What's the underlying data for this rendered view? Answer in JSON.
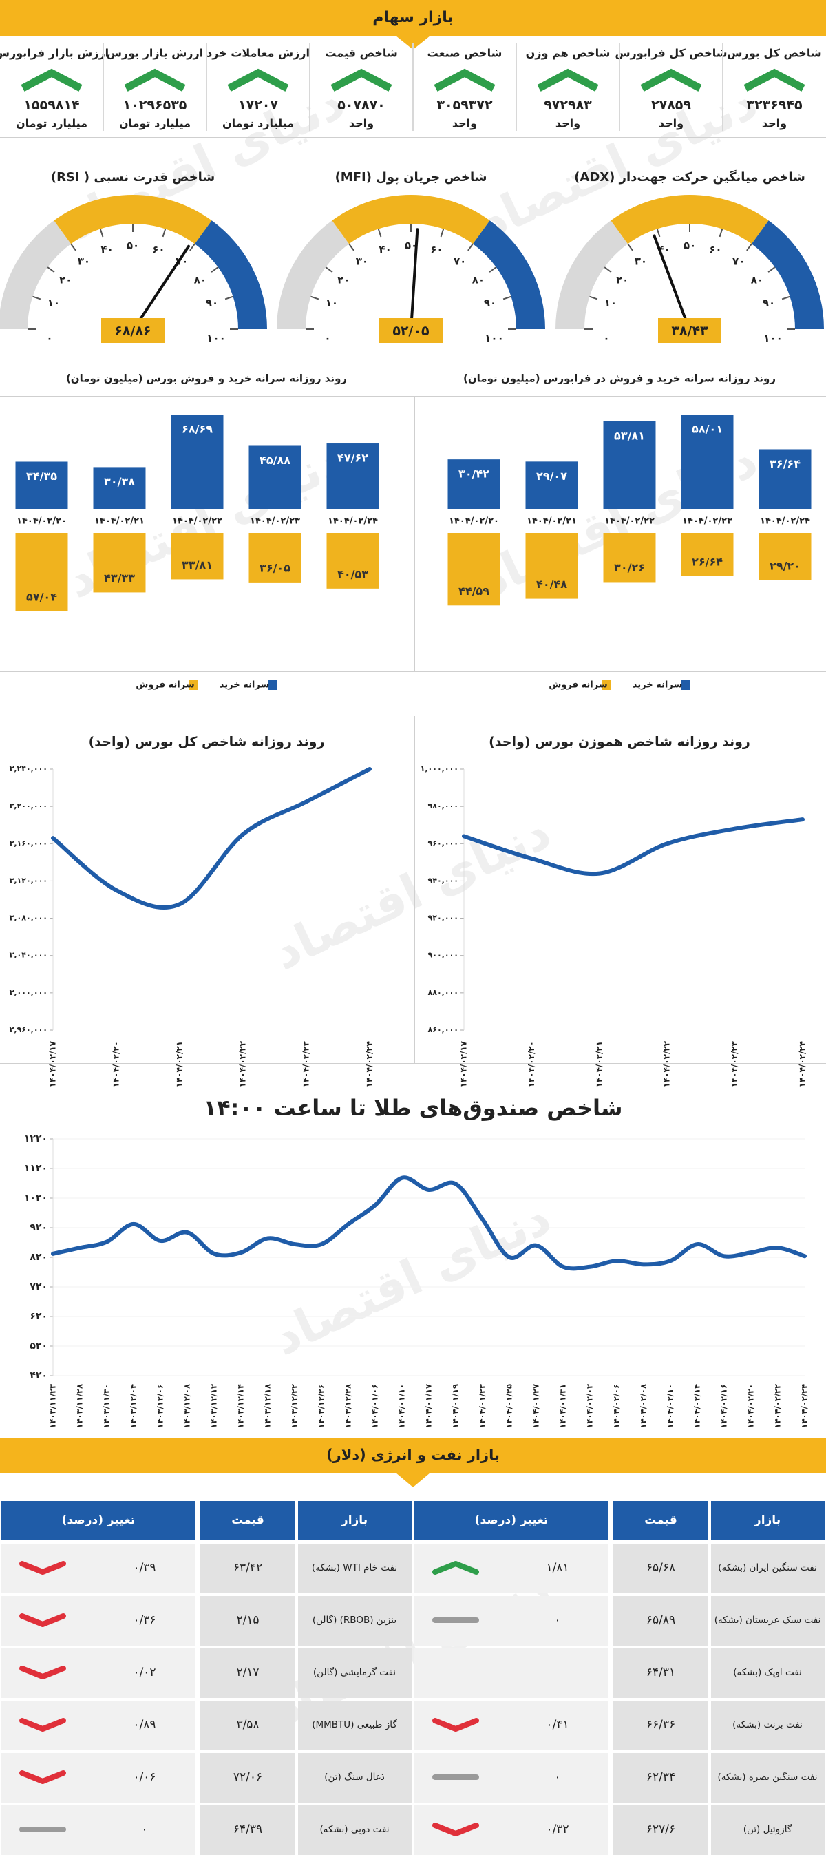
{
  "header": {
    "title": "بازار سهام"
  },
  "watermark": "دنیای اقتصاد",
  "indicator_color": "#2e9e4a",
  "indicators": [
    {
      "title": "شاخص کل بورس",
      "value": "۳۲۳۶۹۴۵",
      "unit": "واحد"
    },
    {
      "title": "شاخص کل فرابورس",
      "value": "۲۷۸۵۹",
      "unit": "واحد"
    },
    {
      "title": "شاخص هم وزن",
      "value": "۹۷۲۹۸۳",
      "unit": "واحد"
    },
    {
      "title": "شاخص صنعت",
      "value": "۳۰۵۹۳۷۲",
      "unit": "واحد"
    },
    {
      "title": "شاخص قیمت",
      "value": "۵۰۷۸۷۰",
      "unit": "واحد"
    },
    {
      "title": "ارزش معاملات خرد",
      "value": "۱۷۲۰۷",
      "unit": "میلیارد تومان"
    },
    {
      "title": "ارزش بازار بورس",
      "value": "۱۰۲۹۶۵۳۵",
      "unit": "میلیارد تومان"
    },
    {
      "title": "ارزش بازار فرابورس",
      "value": "۱۵۵۹۸۱۴",
      "unit": "میلیارد تومان"
    }
  ],
  "chart_data": [
    {
      "type": "gauge",
      "title": "شاخص میانگین حرکت جهت‌دار (ADX)",
      "value": 38.43,
      "value_label": "۳۸/۴۳",
      "ylim": [
        0,
        100
      ],
      "yticks": [
        {
          "value": 0,
          "label": "۰"
        },
        {
          "value": 10,
          "label": "۱۰"
        },
        {
          "value": 20,
          "label": "۲۰"
        },
        {
          "value": 30,
          "label": "۳۰"
        },
        {
          "value": 40,
          "label": "۴۰"
        },
        {
          "value": 50,
          "label": "۵۰"
        },
        {
          "value": 60,
          "label": "۶۰"
        },
        {
          "value": 70,
          "label": "۷۰"
        },
        {
          "value": 80,
          "label": "۸۰"
        },
        {
          "value": 90,
          "label": "۹۰"
        },
        {
          "value": 100,
          "label": "۱۰۰"
        }
      ],
      "bands": [
        {
          "from": 0,
          "to": 30,
          "color": "#d9d9d9"
        },
        {
          "from": 30,
          "to": 70,
          "color": "#f0b31e"
        },
        {
          "from": 70,
          "to": 100,
          "color": "#1f5ca8"
        }
      ]
    },
    {
      "type": "gauge",
      "title": "شاخص جریان پول (MFI)",
      "value": 52.05,
      "value_label": "۵۲/۰۵",
      "ylim": [
        0,
        100
      ],
      "yticks": [
        {
          "value": 0,
          "label": "۰"
        },
        {
          "value": 10,
          "label": "۱۰"
        },
        {
          "value": 20,
          "label": "۲۰"
        },
        {
          "value": 30,
          "label": "۳۰"
        },
        {
          "value": 40,
          "label": "۴۰"
        },
        {
          "value": 50,
          "label": "۵۰"
        },
        {
          "value": 60,
          "label": "۶۰"
        },
        {
          "value": 70,
          "label": "۷۰"
        },
        {
          "value": 80,
          "label": "۸۰"
        },
        {
          "value": 90,
          "label": "۹۰"
        },
        {
          "value": 100,
          "label": "۱۰۰"
        }
      ],
      "bands": [
        {
          "from": 0,
          "to": 30,
          "color": "#d9d9d9"
        },
        {
          "from": 30,
          "to": 70,
          "color": "#f0b31e"
        },
        {
          "from": 70,
          "to": 100,
          "color": "#1f5ca8"
        }
      ]
    },
    {
      "type": "gauge",
      "title": "شاخص قدرت نسبی ( RSI)",
      "value": 68.86,
      "value_label": "۶۸/۸۶",
      "ylim": [
        0,
        100
      ],
      "yticks": [
        {
          "value": 0,
          "label": "۰"
        },
        {
          "value": 10,
          "label": "۱۰"
        },
        {
          "value": 20,
          "label": "۲۰"
        },
        {
          "value": 30,
          "label": "۳۰"
        },
        {
          "value": 40,
          "label": "۴۰"
        },
        {
          "value": 50,
          "label": "۵۰"
        },
        {
          "value": 60,
          "label": "۶۰"
        },
        {
          "value": 70,
          "label": "۷۰"
        },
        {
          "value": 80,
          "label": "۸۰"
        },
        {
          "value": 90,
          "label": "۹۰"
        },
        {
          "value": 100,
          "label": "۱۰۰"
        }
      ],
      "bands": [
        {
          "from": 0,
          "to": 30,
          "color": "#d9d9d9"
        },
        {
          "from": 30,
          "to": 70,
          "color": "#f0b31e"
        },
        {
          "from": 70,
          "to": 100,
          "color": "#1f5ca8"
        }
      ]
    },
    {
      "type": "bar",
      "title": "روند روزانه سرانه خرید و فروش بورس (میلیون تومان)",
      "categories": [
        "۱۴۰۴/۰۲/۲۰",
        "۱۴۰۴/۰۲/۲۱",
        "۱۴۰۴/۰۲/۲۲",
        "۱۴۰۴/۰۲/۲۳",
        "۱۴۰۴/۰۲/۲۴"
      ],
      "series": [
        {
          "name": "سرانه خرید",
          "color": "#1f5ca8",
          "direction": "up",
          "values": [
            34.35,
            30.38,
            68.69,
            45.88,
            47.62
          ],
          "value_labels": [
            "۳۴/۳۵",
            "۳۰/۳۸",
            "۶۸/۶۹",
            "۴۵/۸۸",
            "۴۷/۶۲"
          ]
        },
        {
          "name": "سرانه فروش",
          "color": "#f0b31e",
          "direction": "down",
          "values": [
            57.04,
            43.33,
            33.81,
            36.05,
            40.53
          ],
          "value_labels": [
            "۵۷/۰۴",
            "۴۳/۳۳",
            "۳۳/۸۱",
            "۳۶/۰۵",
            "۴۰/۵۳"
          ]
        }
      ]
    },
    {
      "type": "bar",
      "title": "روند روزانه سرانه خرید و فروش در فرابورس (میلیون تومان)",
      "categories": [
        "۱۴۰۴/۰۲/۲۰",
        "۱۴۰۴/۰۲/۲۱",
        "۱۴۰۴/۰۲/۲۲",
        "۱۴۰۴/۰۲/۲۳",
        "۱۴۰۴/۰۲/۲۴"
      ],
      "series": [
        {
          "name": "سرانه خرید",
          "color": "#1f5ca8",
          "direction": "up",
          "values": [
            30.42,
            29.07,
            53.81,
            58.01,
            36.64
          ],
          "value_labels": [
            "۳۰/۴۲",
            "۲۹/۰۷",
            "۵۳/۸۱",
            "۵۸/۰۱",
            "۳۶/۶۴"
          ]
        },
        {
          "name": "سرانه فروش",
          "color": "#f0b31e",
          "direction": "down",
          "values": [
            44.59,
            40.48,
            30.26,
            26.64,
            29.2
          ],
          "value_labels": [
            "۴۴/۵۹",
            "۴۰/۴۸",
            "۳۰/۲۶",
            "۲۶/۶۴",
            "۲۹/۲۰"
          ]
        }
      ]
    },
    {
      "type": "line",
      "title": "روند روزانه شاخص کل بورس (واحد)",
      "categories": [
        "۱۴۰۴/۰۲/۱۷",
        "۱۴۰۴/۰۲/۲۰",
        "۱۴۰۴/۰۲/۲۱",
        "۱۴۰۴/۰۲/۲۲",
        "۱۴۰۴/۰۲/۲۳",
        "۱۴۰۴/۰۲/۲۴"
      ],
      "series": [
        {
          "color": "#1f5ca8",
          "values": [
            3166000,
            3110000,
            3095000,
            3170000,
            3205000,
            3240000
          ]
        }
      ],
      "ylim": [
        2960000,
        3240000
      ],
      "yticks": [
        {
          "value": 2960000,
          "label": "۲,۹۶۰,۰۰۰"
        },
        {
          "value": 3000000,
          "label": "۳,۰۰۰,۰۰۰"
        },
        {
          "value": 3040000,
          "label": "۳,۰۴۰,۰۰۰"
        },
        {
          "value": 3080000,
          "label": "۳,۰۸۰,۰۰۰"
        },
        {
          "value": 3120000,
          "label": "۳,۱۲۰,۰۰۰"
        },
        {
          "value": 3160000,
          "label": "۳,۱۶۰,۰۰۰"
        },
        {
          "value": 3200000,
          "label": "۳,۲۰۰,۰۰۰"
        },
        {
          "value": 3240000,
          "label": "۳,۲۴۰,۰۰۰"
        }
      ]
    },
    {
      "type": "line",
      "title": "روند روزانه شاخص هموزن بورس (واحد)",
      "categories": [
        "۱۴۰۴/۰۲/۱۷",
        "۱۴۰۴/۰۲/۲۰",
        "۱۴۰۴/۰۲/۲۱",
        "۱۴۰۴/۰۲/۲۲",
        "۱۴۰۴/۰۲/۲۳",
        "۱۴۰۴/۰۲/۲۴"
      ],
      "series": [
        {
          "color": "#1f5ca8",
          "values": [
            964000,
            952000,
            944000,
            960000,
            968000,
            973000
          ]
        }
      ],
      "ylim": [
        860000,
        1000000
      ],
      "yticks": [
        {
          "value": 860000,
          "label": "۸۶۰,۰۰۰"
        },
        {
          "value": 880000,
          "label": "۸۸۰,۰۰۰"
        },
        {
          "value": 900000,
          "label": "۹۰۰,۰۰۰"
        },
        {
          "value": 920000,
          "label": "۹۲۰,۰۰۰"
        },
        {
          "value": 940000,
          "label": "۹۴۰,۰۰۰"
        },
        {
          "value": 960000,
          "label": "۹۶۰,۰۰۰"
        },
        {
          "value": 980000,
          "label": "۹۸۰,۰۰۰"
        },
        {
          "value": 1000000,
          "label": "۱,۰۰۰,۰۰۰"
        }
      ]
    },
    {
      "type": "line",
      "title": "شاخص صندوق‌های طلا تا ساعت ۱۴:۰۰",
      "categories": [
        "۱۴۰۳/۱۱/۲۳",
        "۱۴۰۳/۱۱/۲۸",
        "۱۴۰۳/۱۱/۳۰",
        "۱۴۰۳/۱۲/۰۴",
        "۱۴۰۳/۱۲/۰۶",
        "۱۴۰۳/۱۲/۰۸",
        "۱۴۰۳/۱۲/۱۲",
        "۱۴۰۳/۱۲/۱۴",
        "۱۴۰۳/۱۲/۱۸",
        "۱۴۰۳/۱۲/۲۲",
        "۱۴۰۳/۱۲/۲۶",
        "۱۴۰۳/۱۲/۲۸",
        "۱۴۰۴/۰۱/۰۶",
        "۱۴۰۴/۰۱/۱۰",
        "۱۴۰۴/۰۱/۱۷",
        "۱۴۰۴/۰۱/۱۹",
        "۱۴۰۴/۰۱/۲۳",
        "۱۴۰۴/۰۱/۲۵",
        "۱۴۰۴/۰۱/۲۷",
        "۱۴۰۴/۰۱/۳۱",
        "۱۴۰۴/۰۲/۰۲",
        "۱۴۰۴/۰۲/۰۶",
        "۱۴۰۴/۰۲/۰۸",
        "۱۴۰۴/۰۲/۱۰",
        "۱۴۰۴/۰۲/۱۴",
        "۱۴۰۴/۰۲/۱۶",
        "۱۴۰۴/۰۲/۲۰",
        "۱۴۰۴/۰۲/۲۲",
        "۱۴۰۴/۰۲/۲۴"
      ],
      "series": [
        {
          "color": "#1f5ca8",
          "values": [
            832,
            852,
            872,
            932,
            876,
            904,
            832,
            836,
            884,
            864,
            864,
            932,
            996,
            1088,
            1048,
            1068,
            948,
            820,
            860,
            788,
            788,
            808,
            796,
            808,
            864,
            824,
            836,
            852,
            824
          ]
        }
      ],
      "ylim": [
        420,
        1220
      ],
      "yticks": [
        {
          "value": 420,
          "label": "۴۲۰"
        },
        {
          "value": 520,
          "label": "۵۲۰"
        },
        {
          "value": 620,
          "label": "۶۲۰"
        },
        {
          "value": 720,
          "label": "۷۲۰"
        },
        {
          "value": 820,
          "label": "۸۲۰"
        },
        {
          "value": 920,
          "label": "۹۲۰"
        },
        {
          "value": 1020,
          "label": "۱۰۲۰"
        },
        {
          "value": 1120,
          "label": "۱۱۲۰"
        },
        {
          "value": 1220,
          "label": "۱۲۲۰"
        }
      ]
    }
  ],
  "oil": {
    "title": "بازار نفت و انرژی (دلار)",
    "columns": [
      "بازار",
      "قیمت",
      "تغییر (درصد)"
    ],
    "tables": [
      {
        "rows": [
          {
            "market": "نفت سنگین ایران (بشکه)",
            "price": "۶۵/۶۸",
            "change": "۱/۸۱",
            "trend": "up"
          },
          {
            "market": "نفت سبک عربستان (بشکه)",
            "price": "۶۵/۸۹",
            "change": "۰",
            "trend": "flat"
          },
          {
            "market": "نفت اوپک (بشکه)",
            "price": "۶۴/۳۱",
            "change": null,
            "trend": null
          },
          {
            "market": "نفت برنت (بشکه)",
            "price": "۶۶/۳۶",
            "change": "۰/۴۱",
            "trend": "down"
          },
          {
            "market": "نفت سنگین بصره (بشکه)",
            "price": "۶۲/۳۴",
            "change": "۰",
            "trend": "flat"
          },
          {
            "market": "گازوئیل (تن)",
            "price": "۶۲۷/۶",
            "change": "۰/۳۲",
            "trend": "down"
          }
        ]
      },
      {
        "rows": [
          {
            "market": "نفت خام WTI (بشکه)",
            "price": "۶۳/۴۲",
            "change": "۰/۳۹",
            "trend": "down"
          },
          {
            "market": "بنزین (RBOB) (گالن)",
            "price": "۲/۱۵",
            "change": "۰/۳۶",
            "trend": "down"
          },
          {
            "market": "نفت گرمایشی (گالن)",
            "price": "۲/۱۷",
            "change": "۰/۰۲",
            "trend": "down"
          },
          {
            "market": "گاز طبیعی (MMBTU)",
            "price": "۳/۵۸",
            "change": "۰/۸۹",
            "trend": "down"
          },
          {
            "market": "ذغال سنگ (تن)",
            "price": "۷۲/۰۶",
            "change": "۰/۰۶",
            "trend": "down"
          },
          {
            "market": "نفت دوبی (بشکه)",
            "price": "۶۴/۳۹",
            "change": "۰",
            "trend": "flat"
          }
        ]
      }
    ]
  }
}
